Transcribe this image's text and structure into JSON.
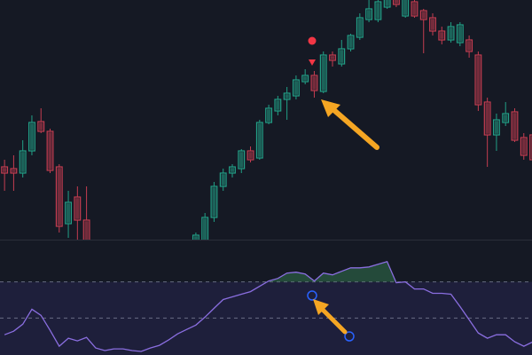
{
  "chart_data": {
    "type": "candlestick",
    "x": [
      0,
      1,
      2,
      3,
      4,
      5,
      6,
      7,
      8,
      9,
      21,
      22,
      23,
      24,
      25,
      26,
      27,
      28,
      29,
      30,
      31,
      32,
      33,
      34,
      35,
      36,
      37,
      38,
      39,
      40,
      41,
      42,
      43,
      44,
      45,
      46,
      47,
      48,
      49,
      50,
      51,
      52,
      53,
      54,
      55,
      56,
      57,
      58
    ],
    "open": [
      82,
      80,
      75,
      100,
      133,
      122,
      82,
      18,
      48,
      22,
      -10,
      -10,
      25,
      60,
      75,
      80,
      100,
      92,
      132,
      145,
      158,
      162,
      178,
      185,
      167,
      208,
      198,
      215,
      228,
      248,
      248,
      262,
      275,
      252,
      268,
      258,
      250,
      235,
      225,
      222,
      225,
      208,
      155,
      118,
      132,
      144,
      115,
      118
    ],
    "high": [
      90,
      95,
      112,
      140,
      148,
      125,
      85,
      55,
      60,
      60,
      8,
      30,
      65,
      80,
      85,
      102,
      105,
      135,
      152,
      162,
      172,
      185,
      192,
      190,
      212,
      212,
      225,
      232,
      255,
      270,
      275,
      280,
      280,
      278,
      275,
      260,
      255,
      240,
      245,
      245,
      230,
      212,
      160,
      142,
      155,
      148,
      120,
      122
    ],
    "low": [
      55,
      55,
      70,
      95,
      120,
      75,
      8,
      2,
      0,
      -10,
      -15,
      -15,
      20,
      55,
      70,
      75,
      87,
      90,
      130,
      140,
      135,
      158,
      175,
      160,
      165,
      195,
      195,
      212,
      225,
      245,
      245,
      260,
      262,
      250,
      250,
      210,
      230,
      220,
      222,
      218,
      205,
      145,
      82,
      100,
      128,
      110,
      90,
      85
    ],
    "close": [
      75,
      75,
      100,
      132,
      122,
      78,
      15,
      42,
      22,
      -5,
      5,
      25,
      60,
      75,
      82,
      100,
      90,
      132,
      148,
      158,
      165,
      180,
      185,
      168,
      208,
      202,
      215,
      230,
      250,
      260,
      268,
      272,
      265,
      272,
      252,
      248,
      235,
      225,
      240,
      242,
      212,
      152,
      118,
      135,
      142,
      112,
      95,
      90
    ],
    "up_color": "#22a087",
    "down_color": "#c53d51",
    "xlim": [
      -0.5,
      57.9
    ],
    "ylim": [
      0,
      270
    ],
    "oscillator": {
      "x": [
        0,
        1,
        2,
        3,
        4,
        5,
        6,
        7,
        8,
        9,
        10,
        11,
        12,
        13,
        14,
        15,
        16,
        17,
        18,
        19,
        20,
        21,
        22,
        23,
        24,
        25,
        26,
        27,
        28,
        29,
        30,
        31,
        32,
        33,
        34,
        35,
        36,
        37,
        38,
        39,
        40,
        41,
        42,
        43,
        44,
        45,
        46,
        47,
        48,
        49,
        50,
        51,
        52,
        53,
        54,
        55,
        56,
        57,
        58
      ],
      "values": [
        23,
        27,
        35,
        52,
        45,
        28,
        10,
        19,
        16,
        20,
        8,
        5,
        7,
        7,
        5,
        4,
        8,
        11,
        17,
        24,
        29,
        34,
        43,
        53,
        63,
        66,
        69,
        72,
        78,
        84,
        87,
        93,
        94,
        92,
        84,
        93,
        91,
        95,
        99,
        99,
        100,
        103,
        106,
        82,
        83,
        75,
        75,
        70,
        70,
        69,
        55,
        40,
        25,
        19,
        23,
        23,
        15,
        10,
        15
      ],
      "color": "#8a6ee0",
      "y2lim": [
        0,
        130
      ],
      "levels": [
        83,
        42
      ]
    }
  }
}
